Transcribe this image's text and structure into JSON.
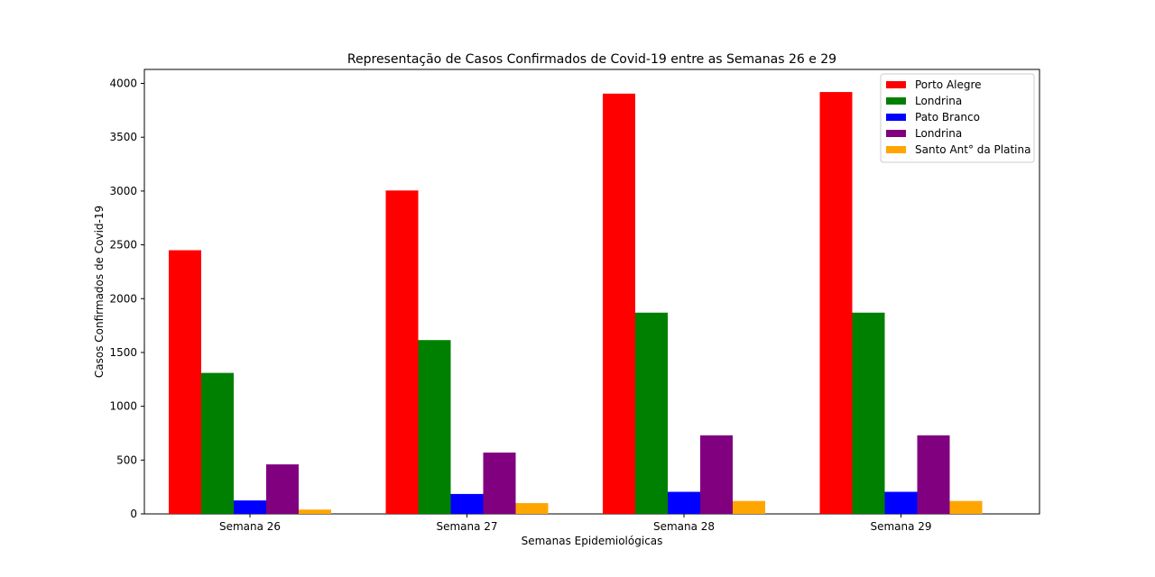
{
  "chart_data": {
    "type": "bar",
    "title": "Representação de Casos Confirmados de Covid-19 entre as Semanas 26 e 29",
    "xlabel": "Semanas Epidemiológicas",
    "ylabel": "Casos Confirmados de Covid-19",
    "categories": [
      "Semana 26",
      "Semana 27",
      "Semana 28",
      "Semana 29"
    ],
    "ylim": [
      0,
      4130
    ],
    "yticks": [
      0,
      500,
      1000,
      1500,
      2000,
      2500,
      3000,
      3500,
      4000
    ],
    "grid": false,
    "legend_position": "top-right",
    "series": [
      {
        "name": "Porto Alegre",
        "color": "#ff0000",
        "values": [
          2450,
          3005,
          3905,
          3920
        ]
      },
      {
        "name": "Londrina",
        "color": "#008000",
        "values": [
          1310,
          1615,
          1870,
          1870
        ]
      },
      {
        "name": "Pato Branco",
        "color": "#0000ff",
        "values": [
          125,
          185,
          205,
          205
        ]
      },
      {
        "name": "Londrina",
        "color": "#800080",
        "values": [
          460,
          570,
          730,
          730
        ]
      },
      {
        "name": "Santo Ant° da Platina",
        "color": "#ffa500",
        "values": [
          40,
          100,
          120,
          120
        ]
      }
    ]
  }
}
